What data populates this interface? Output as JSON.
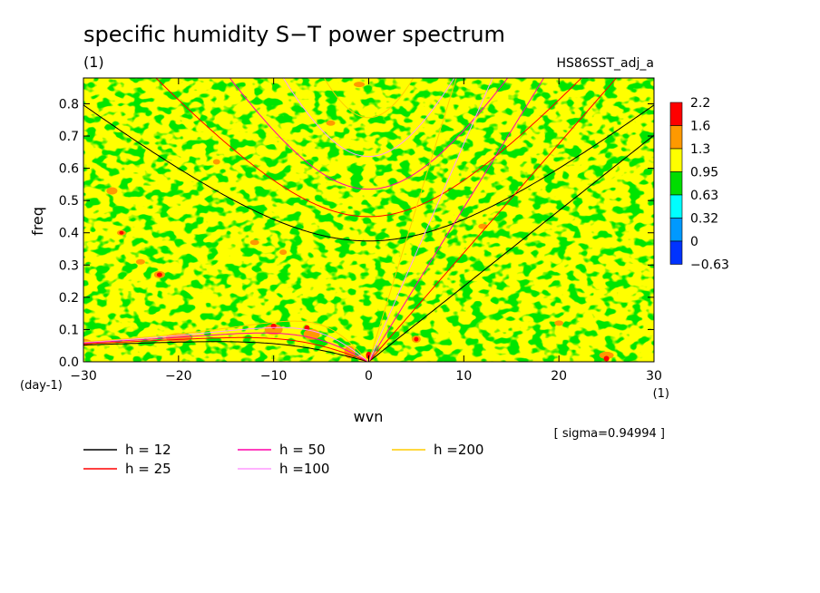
{
  "chart_data": {
    "type": "heatmap",
    "title": "specific humidity S−T power spectrum",
    "subtitle_left": "(1)",
    "subtitle_right": "HS86SST_adj_a",
    "xlabel": "wvn",
    "x_unit": "(1)",
    "ylabel": "freq",
    "y_unit": "(day-1)",
    "xlim": [
      -30,
      30
    ],
    "ylim": [
      0,
      0.88
    ],
    "xticks": [
      -30,
      -20,
      -10,
      0,
      10,
      20,
      30
    ],
    "yticks": [
      0.0,
      0.1,
      0.2,
      0.3,
      0.4,
      0.5,
      0.6,
      0.7,
      0.8
    ],
    "sigma_label": "[ sigma=0.94994 ]",
    "colorbar": {
      "levels": [
        "2.2",
        "1.6",
        "1.3",
        "0.95",
        "0.63",
        "0.32",
        "0",
        "−0.63"
      ],
      "colors": [
        "#ff0000",
        "#ff9900",
        "#ffff00",
        "#00dd00",
        "#00ffff",
        "#0099ff",
        "#0033ff"
      ]
    },
    "dispersion_curves": [
      {
        "label": "h = 12",
        "h": 12,
        "color": "#000000"
      },
      {
        "label": "h = 25",
        "h": 25,
        "color": "#ff0000"
      },
      {
        "label": "h = 50",
        "h": 50,
        "color": "#ff00aa"
      },
      {
        "label": "h =100",
        "h": 100,
        "color": "#ff99ff"
      },
      {
        "label": "h =200",
        "h": 200,
        "color": "#ffcc00"
      }
    ]
  }
}
